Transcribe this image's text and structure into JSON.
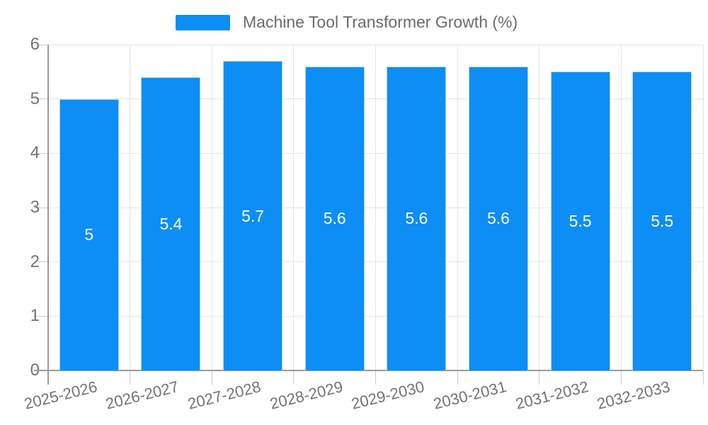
{
  "legend": {
    "label": "Machine Tool Transformer Growth (%)"
  },
  "chart_data": {
    "type": "bar",
    "title": "",
    "xlabel": "",
    "ylabel": "",
    "categories": [
      "2025-2026",
      "2026-2027",
      "2027-2028",
      "2028-2029",
      "2029-2030",
      "2030-2031",
      "2031-2032",
      "2032-2033"
    ],
    "series": [
      {
        "name": "Machine Tool Transformer Growth (%)",
        "values": [
          5,
          5.4,
          5.7,
          5.6,
          5.6,
          5.6,
          5.5,
          5.5
        ]
      }
    ],
    "value_labels": [
      "5",
      "5.4",
      "5.7",
      "5.6",
      "5.6",
      "5.6",
      "5.5",
      "5.5"
    ],
    "ylim": [
      0,
      6
    ],
    "yticks": [
      0,
      1,
      2,
      3,
      4,
      5,
      6
    ],
    "ytick_labels": [
      "0",
      "1",
      "2",
      "3",
      "4",
      "5",
      "6"
    ],
    "grid": true,
    "legend_position": "top",
    "colors": {
      "bar": "#0d8ef4",
      "bar_border": "#a6d3f8",
      "grid": "#e4e4e4",
      "axis": "#9b9b9b",
      "tick": "#cccccc",
      "axis_text": "#737373",
      "legend_text": "#6b6b6b",
      "value_text": "#ffffff",
      "background": "#ffffff"
    }
  }
}
